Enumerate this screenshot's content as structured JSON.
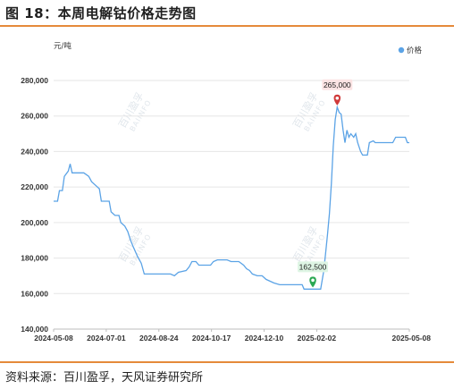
{
  "figure": {
    "title": "图 18：本周电解钴价格走势图",
    "source": "资料来源：百川盈孚，天风证券研究所"
  },
  "chart_data": {
    "type": "line",
    "title": "",
    "ylabel": "元/吨",
    "xlabel": "",
    "ylim": [
      140000,
      280000
    ],
    "yticks": [
      140000,
      160000,
      180000,
      200000,
      220000,
      240000,
      260000,
      280000
    ],
    "ytick_labels": [
      "140,000",
      "160,000",
      "180,000",
      "200,000",
      "220,000",
      "240,000",
      "260,000",
      "280,000"
    ],
    "xlim": [
      "2024-05-08",
      "2025-05-08"
    ],
    "xtick_labels": [
      "2024-05-08",
      "2024-07-01",
      "2024-08-24",
      "2024-10-17",
      "2024-12-10",
      "2025-02-02",
      "2025-05-08"
    ],
    "grid": true,
    "legend_position": "top-right",
    "watermark": [
      "百川盈孚",
      "BAIINFO"
    ],
    "series": [
      {
        "name": "价格",
        "color": "#5ba3e6",
        "points": [
          [
            "2024-05-08",
            212000
          ],
          [
            "2024-05-12",
            212000
          ],
          [
            "2024-05-14",
            218000
          ],
          [
            "2024-05-17",
            218000
          ],
          [
            "2024-05-19",
            226000
          ],
          [
            "2024-05-23",
            229000
          ],
          [
            "2024-05-25",
            233000
          ],
          [
            "2024-05-27",
            228000
          ],
          [
            "2024-06-01",
            228000
          ],
          [
            "2024-06-08",
            228000
          ],
          [
            "2024-06-13",
            226000
          ],
          [
            "2024-06-16",
            223000
          ],
          [
            "2024-06-20",
            221000
          ],
          [
            "2024-06-24",
            219000
          ],
          [
            "2024-06-26",
            212000
          ],
          [
            "2024-06-30",
            212000
          ],
          [
            "2024-07-04",
            212000
          ],
          [
            "2024-07-06",
            206000
          ],
          [
            "2024-07-10",
            204000
          ],
          [
            "2024-07-14",
            204000
          ],
          [
            "2024-07-16",
            200000
          ],
          [
            "2024-07-20",
            198000
          ],
          [
            "2024-07-23",
            195000
          ],
          [
            "2024-07-26",
            190000
          ],
          [
            "2024-07-29",
            186000
          ],
          [
            "2024-08-02",
            181000
          ],
          [
            "2024-08-06",
            177000
          ],
          [
            "2024-08-09",
            171000
          ],
          [
            "2024-08-18",
            171000
          ],
          [
            "2024-08-28",
            171000
          ],
          [
            "2024-09-05",
            171000
          ],
          [
            "2024-09-09",
            170000
          ],
          [
            "2024-09-13",
            172000
          ],
          [
            "2024-09-21",
            173000
          ],
          [
            "2024-09-24",
            175000
          ],
          [
            "2024-09-27",
            178000
          ],
          [
            "2024-10-01",
            178000
          ],
          [
            "2024-10-04",
            176000
          ],
          [
            "2024-10-12",
            176000
          ],
          [
            "2024-10-16",
            176000
          ],
          [
            "2024-10-19",
            178000
          ],
          [
            "2024-10-23",
            179000
          ],
          [
            "2024-11-02",
            179000
          ],
          [
            "2024-11-06",
            178000
          ],
          [
            "2024-11-14",
            178000
          ],
          [
            "2024-11-19",
            176000
          ],
          [
            "2024-11-22",
            174000
          ],
          [
            "2024-11-25",
            173000
          ],
          [
            "2024-11-28",
            171000
          ],
          [
            "2024-12-03",
            170000
          ],
          [
            "2024-12-08",
            170000
          ],
          [
            "2024-12-12",
            168000
          ],
          [
            "2024-12-20",
            166000
          ],
          [
            "2024-12-26",
            165000
          ],
          [
            "2025-01-06",
            165000
          ],
          [
            "2025-01-14",
            165000
          ],
          [
            "2025-01-18",
            165000
          ],
          [
            "2025-01-20",
            162500
          ],
          [
            "2025-02-06",
            162500
          ],
          [
            "2025-02-09",
            172000
          ],
          [
            "2025-02-11",
            182000
          ],
          [
            "2025-02-13",
            193000
          ],
          [
            "2025-02-15",
            205000
          ],
          [
            "2025-02-17",
            222000
          ],
          [
            "2025-02-19",
            243000
          ],
          [
            "2025-02-21",
            258000
          ],
          [
            "2025-02-23",
            265000
          ],
          [
            "2025-02-25",
            262000
          ],
          [
            "2025-02-27",
            261000
          ],
          [
            "2025-03-01",
            252000
          ],
          [
            "2025-03-03",
            245000
          ],
          [
            "2025-03-05",
            252000
          ],
          [
            "2025-03-07",
            248000
          ],
          [
            "2025-03-09",
            250000
          ],
          [
            "2025-03-12",
            248000
          ],
          [
            "2025-03-14",
            250000
          ],
          [
            "2025-03-16",
            245000
          ],
          [
            "2025-03-19",
            240000
          ],
          [
            "2025-03-21",
            238000
          ],
          [
            "2025-03-26",
            238000
          ],
          [
            "2025-03-28",
            245000
          ],
          [
            "2025-04-01",
            246000
          ],
          [
            "2025-04-03",
            245000
          ],
          [
            "2025-04-08",
            245000
          ],
          [
            "2025-04-15",
            245000
          ],
          [
            "2025-04-21",
            245000
          ],
          [
            "2025-04-24",
            248000
          ],
          [
            "2025-04-29",
            248000
          ],
          [
            "2025-05-04",
            248000
          ],
          [
            "2025-05-06",
            245000
          ],
          [
            "2025-05-08",
            245000
          ]
        ]
      }
    ],
    "annotations": [
      {
        "label": "265,000",
        "x": "2025-02-23",
        "y": 265000,
        "color": "#d03a3a",
        "bg": "#fbe3e3"
      },
      {
        "label": "162,500",
        "x": "2025-01-29",
        "y": 162500,
        "color": "#2aa852",
        "bg": "#def5e4"
      }
    ]
  }
}
